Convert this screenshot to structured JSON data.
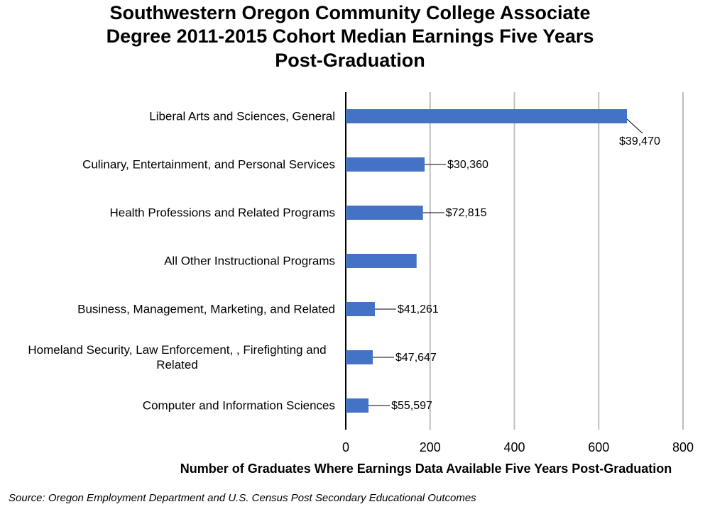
{
  "chart_data": {
    "type": "hbar",
    "title": [
      "Southwestern Oregon Community College Associate",
      "Degree 2011-2015 Cohort Median Earnings Five Years",
      "Post-Graduation"
    ],
    "categories": [
      "Liberal Arts and Sciences, General",
      "Culinary, Entertainment, and Personal Services",
      "Health Professions and Related Programs",
      "All Other Instructional Programs",
      "Business, Management, Marketing, and Related ",
      "Homeland Security, Law Enforcement, , Firefighting and Related",
      "Computer and Information Sciences"
    ],
    "values": [
      667,
      187,
      183,
      168,
      69,
      64,
      54
    ],
    "annotations": [
      "$39,470",
      "$30,360",
      "$72,815",
      null,
      "$41,261",
      "$47,647",
      "$55,597"
    ],
    "color": "#4472c4",
    "xlim": [
      0,
      800
    ],
    "xticks": [
      0,
      200,
      400,
      600,
      800
    ],
    "grid": true,
    "x_label": "Number of Graduates Where Earnings Data Available Five Years Post-Graduation",
    "source": "Source: Oregon Employment Department and U.S. Census Post Secondary Educational Outcomes"
  }
}
